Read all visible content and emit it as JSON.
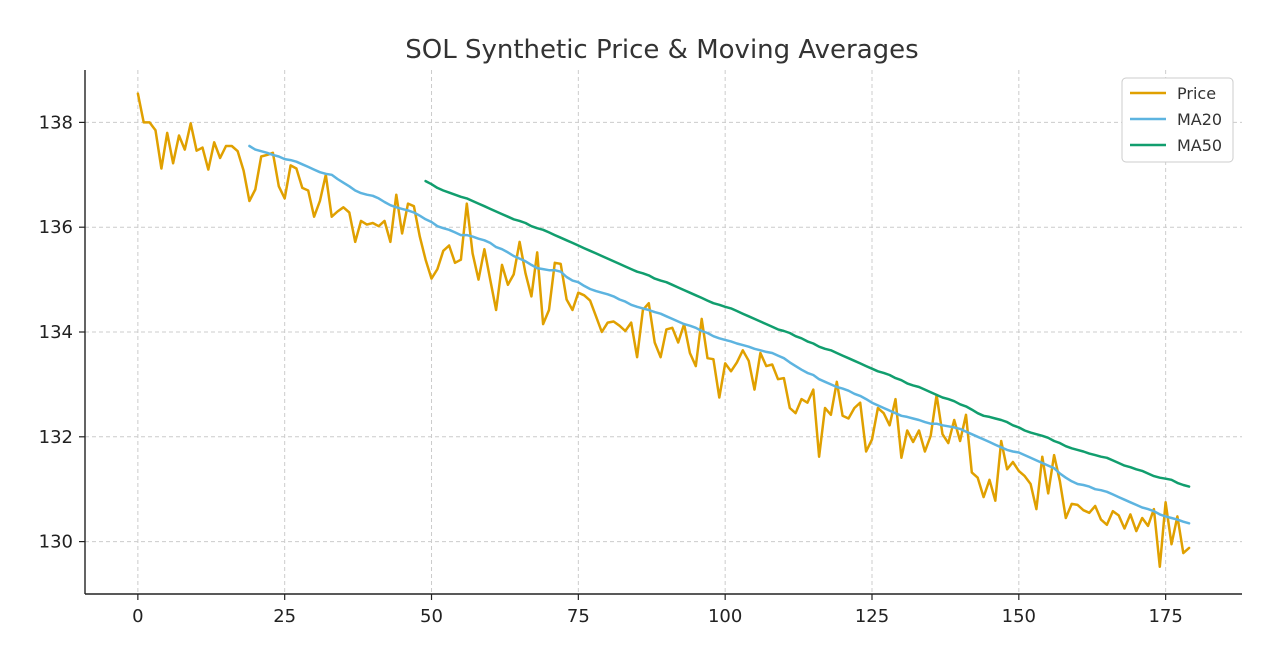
{
  "chart_data": {
    "type": "line",
    "title": "SOL Synthetic Price & Moving Averages",
    "xlabel": "",
    "ylabel": "",
    "xlim": [
      -9,
      188
    ],
    "ylim": [
      129.0,
      139.0
    ],
    "xticks": [
      0,
      25,
      50,
      75,
      100,
      125,
      150,
      175
    ],
    "yticks": [
      130,
      132,
      134,
      136,
      138
    ],
    "grid": true,
    "legend_position": "top-right",
    "series": [
      {
        "name": "Price",
        "color": "#E0A000",
        "x": [
          0,
          1,
          2,
          3,
          4,
          5,
          6,
          7,
          8,
          9,
          10,
          11,
          12,
          13,
          14,
          15,
          16,
          17,
          18,
          19,
          20,
          21,
          22,
          23,
          24,
          25,
          26,
          27,
          28,
          29,
          30,
          31,
          32,
          33,
          34,
          35,
          36,
          37,
          38,
          39,
          40,
          41,
          42,
          43,
          44,
          45,
          46,
          47,
          48,
          49,
          50,
          51,
          52,
          53,
          54,
          55,
          56,
          57,
          58,
          59,
          60,
          61,
          62,
          63,
          64,
          65,
          66,
          67,
          68,
          69,
          70,
          71,
          72,
          73,
          74,
          75,
          76,
          77,
          78,
          79,
          80,
          81,
          82,
          83,
          84,
          85,
          86,
          87,
          88,
          89,
          90,
          91,
          92,
          93,
          94,
          95,
          96,
          97,
          98,
          99,
          100,
          101,
          102,
          103,
          104,
          105,
          106,
          107,
          108,
          109,
          110,
          111,
          112,
          113,
          114,
          115,
          116,
          117,
          118,
          119,
          120,
          121,
          122,
          123,
          124,
          125,
          126,
          127,
          128,
          129,
          130,
          131,
          132,
          133,
          134,
          135,
          136,
          137,
          138,
          139,
          140,
          141,
          142,
          143,
          144,
          145,
          146,
          147,
          148,
          149,
          150,
          151,
          152,
          153,
          154,
          155,
          156,
          157,
          158,
          159,
          160,
          161,
          162,
          163,
          164,
          165,
          166,
          167,
          168,
          169,
          170,
          171,
          172,
          173,
          174,
          175,
          176,
          177,
          178,
          179
        ],
        "y": [
          138.55,
          138.0,
          138.0,
          137.85,
          137.12,
          137.8,
          137.22,
          137.75,
          137.48,
          137.98,
          137.46,
          137.52,
          137.1,
          137.62,
          137.32,
          137.55,
          137.55,
          137.45,
          137.08,
          136.5,
          136.72,
          137.35,
          137.38,
          137.42,
          136.78,
          136.55,
          137.18,
          137.12,
          136.75,
          136.7,
          136.2,
          136.5,
          137.0,
          136.2,
          136.3,
          136.38,
          136.28,
          135.72,
          136.12,
          136.05,
          136.08,
          136.02,
          136.12,
          135.72,
          136.62,
          135.88,
          136.45,
          136.4,
          135.82,
          135.38,
          135.02,
          135.2,
          135.55,
          135.65,
          135.32,
          135.38,
          136.45,
          135.5,
          135.0,
          135.58,
          135.0,
          134.42,
          135.28,
          134.9,
          135.1,
          135.72,
          135.12,
          134.68,
          135.52,
          134.15,
          134.42,
          135.32,
          135.3,
          134.62,
          134.42,
          134.75,
          134.7,
          134.6,
          134.3,
          134.0,
          134.18,
          134.2,
          134.12,
          134.02,
          134.18,
          133.52,
          134.42,
          134.55,
          133.8,
          133.52,
          134.05,
          134.08,
          133.8,
          134.15,
          133.6,
          133.35,
          134.25,
          133.5,
          133.48,
          132.75,
          133.4,
          133.25,
          133.42,
          133.65,
          133.45,
          132.9,
          133.6,
          133.35,
          133.38,
          133.1,
          133.12,
          132.55,
          132.45,
          132.72,
          132.65,
          132.9,
          131.62,
          132.55,
          132.42,
          133.05,
          132.4,
          132.35,
          132.55,
          132.65,
          131.72,
          131.95,
          132.55,
          132.45,
          132.22,
          132.72,
          131.6,
          132.12,
          131.9,
          132.12,
          131.72,
          132.02,
          132.8,
          132.05,
          131.88,
          132.32,
          131.92,
          132.42,
          131.32,
          131.22,
          130.85,
          131.18,
          130.78,
          131.92,
          131.38,
          131.52,
          131.35,
          131.25,
          131.1,
          130.62,
          131.62,
          130.92,
          131.65,
          131.15,
          130.45,
          130.72,
          130.7,
          130.6,
          130.55,
          130.68,
          130.42,
          130.32,
          130.58,
          130.5,
          130.25,
          130.52,
          130.2,
          130.45,
          130.3,
          130.62,
          129.52,
          130.75,
          129.95,
          130.48,
          129.78,
          129.88
        ]
      },
      {
        "name": "MA20",
        "color": "#5DB4E0",
        "x": [
          19,
          20,
          21,
          22,
          23,
          24,
          25,
          26,
          27,
          28,
          29,
          30,
          31,
          32,
          33,
          34,
          35,
          36,
          37,
          38,
          39,
          40,
          41,
          42,
          43,
          44,
          45,
          46,
          47,
          48,
          49,
          50,
          51,
          52,
          53,
          54,
          55,
          56,
          57,
          58,
          59,
          60,
          61,
          62,
          63,
          64,
          65,
          66,
          67,
          68,
          69,
          70,
          71,
          72,
          73,
          74,
          75,
          76,
          77,
          78,
          79,
          80,
          81,
          82,
          83,
          84,
          85,
          86,
          87,
          88,
          89,
          90,
          91,
          92,
          93,
          94,
          95,
          96,
          97,
          98,
          99,
          100,
          101,
          102,
          103,
          104,
          105,
          106,
          107,
          108,
          109,
          110,
          111,
          112,
          113,
          114,
          115,
          116,
          117,
          118,
          119,
          120,
          121,
          122,
          123,
          124,
          125,
          126,
          127,
          128,
          129,
          130,
          131,
          132,
          133,
          134,
          135,
          136,
          137,
          138,
          139,
          140,
          141,
          142,
          143,
          144,
          145,
          146,
          147,
          148,
          149,
          150,
          151,
          152,
          153,
          154,
          155,
          156,
          157,
          158,
          159,
          160,
          161,
          162,
          163,
          164,
          165,
          166,
          167,
          168,
          169,
          170,
          171,
          172,
          173,
          174,
          175,
          176,
          177,
          178,
          179
        ],
        "y": [
          137.55,
          137.48,
          137.45,
          137.42,
          137.38,
          137.35,
          137.3,
          137.28,
          137.25,
          137.2,
          137.15,
          137.1,
          137.05,
          137.02,
          137.0,
          136.92,
          136.85,
          136.78,
          136.7,
          136.65,
          136.62,
          136.6,
          136.55,
          136.48,
          136.42,
          136.38,
          136.35,
          136.32,
          136.28,
          136.22,
          136.15,
          136.1,
          136.02,
          135.98,
          135.95,
          135.9,
          135.85,
          135.85,
          135.82,
          135.78,
          135.75,
          135.7,
          135.62,
          135.58,
          135.52,
          135.45,
          135.4,
          135.35,
          135.28,
          135.22,
          135.2,
          135.18,
          135.18,
          135.15,
          135.05,
          134.98,
          134.95,
          134.88,
          134.82,
          134.78,
          134.75,
          134.72,
          134.68,
          134.62,
          134.58,
          134.52,
          134.48,
          134.45,
          134.42,
          134.38,
          134.35,
          134.3,
          134.25,
          134.2,
          134.15,
          134.12,
          134.08,
          134.02,
          133.98,
          133.92,
          133.88,
          133.85,
          133.82,
          133.78,
          133.75,
          133.72,
          133.68,
          133.65,
          133.62,
          133.6,
          133.55,
          133.5,
          133.42,
          133.35,
          133.28,
          133.22,
          133.18,
          133.1,
          133.05,
          133.0,
          132.95,
          132.92,
          132.88,
          132.82,
          132.78,
          132.72,
          132.65,
          132.6,
          132.55,
          132.5,
          132.45,
          132.4,
          132.38,
          132.35,
          132.32,
          132.28,
          132.25,
          132.25,
          132.22,
          132.2,
          132.18,
          132.15,
          132.1,
          132.05,
          132.0,
          131.95,
          131.9,
          131.85,
          131.8,
          131.75,
          131.72,
          131.7,
          131.65,
          131.6,
          131.55,
          131.5,
          131.45,
          131.4,
          131.3,
          131.22,
          131.15,
          131.1,
          131.08,
          131.05,
          131.0,
          130.98,
          130.95,
          130.9,
          130.85,
          130.8,
          130.75,
          130.7,
          130.65,
          130.62,
          130.58,
          130.52,
          130.48,
          130.45,
          130.42,
          130.38,
          130.35
        ]
      },
      {
        "name": "MA50",
        "color": "#119E6E",
        "x": [
          49,
          50,
          51,
          52,
          53,
          54,
          55,
          56,
          57,
          58,
          59,
          60,
          61,
          62,
          63,
          64,
          65,
          66,
          67,
          68,
          69,
          70,
          71,
          72,
          73,
          74,
          75,
          76,
          77,
          78,
          79,
          80,
          81,
          82,
          83,
          84,
          85,
          86,
          87,
          88,
          89,
          90,
          91,
          92,
          93,
          94,
          95,
          96,
          97,
          98,
          99,
          100,
          101,
          102,
          103,
          104,
          105,
          106,
          107,
          108,
          109,
          110,
          111,
          112,
          113,
          114,
          115,
          116,
          117,
          118,
          119,
          120,
          121,
          122,
          123,
          124,
          125,
          126,
          127,
          128,
          129,
          130,
          131,
          132,
          133,
          134,
          135,
          136,
          137,
          138,
          139,
          140,
          141,
          142,
          143,
          144,
          145,
          146,
          147,
          148,
          149,
          150,
          151,
          152,
          153,
          154,
          155,
          156,
          157,
          158,
          159,
          160,
          161,
          162,
          163,
          164,
          165,
          166,
          167,
          168,
          169,
          170,
          171,
          172,
          173,
          174,
          175,
          176,
          177,
          178,
          179
        ],
        "y": [
          136.88,
          136.82,
          136.75,
          136.7,
          136.66,
          136.62,
          136.58,
          136.55,
          136.5,
          136.45,
          136.4,
          136.35,
          136.3,
          136.25,
          136.2,
          136.15,
          136.12,
          136.08,
          136.02,
          135.98,
          135.95,
          135.9,
          135.85,
          135.8,
          135.75,
          135.7,
          135.65,
          135.6,
          135.55,
          135.5,
          135.45,
          135.4,
          135.35,
          135.3,
          135.25,
          135.2,
          135.15,
          135.12,
          135.08,
          135.02,
          134.98,
          134.95,
          134.9,
          134.85,
          134.8,
          134.75,
          134.7,
          134.65,
          134.6,
          134.55,
          134.52,
          134.48,
          134.45,
          134.4,
          134.35,
          134.3,
          134.25,
          134.2,
          134.15,
          134.1,
          134.05,
          134.02,
          133.98,
          133.92,
          133.88,
          133.82,
          133.78,
          133.72,
          133.68,
          133.65,
          133.6,
          133.55,
          133.5,
          133.45,
          133.4,
          133.35,
          133.3,
          133.25,
          133.22,
          133.18,
          133.12,
          133.08,
          133.02,
          132.98,
          132.95,
          132.9,
          132.85,
          132.8,
          132.75,
          132.72,
          132.68,
          132.62,
          132.58,
          132.52,
          132.45,
          132.4,
          132.38,
          132.35,
          132.32,
          132.28,
          132.22,
          132.18,
          132.12,
          132.08,
          132.05,
          132.02,
          131.98,
          131.92,
          131.88,
          131.82,
          131.78,
          131.75,
          131.72,
          131.68,
          131.65,
          131.62,
          131.6,
          131.55,
          131.5,
          131.45,
          131.42,
          131.38,
          131.35,
          131.3,
          131.25,
          131.22,
          131.2,
          131.18,
          131.12,
          131.08,
          131.05
        ]
      }
    ]
  }
}
